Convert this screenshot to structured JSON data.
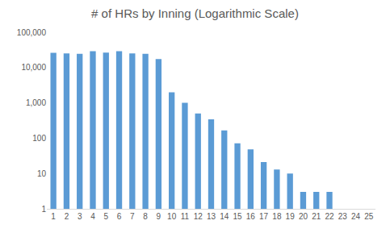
{
  "chart_data": {
    "type": "bar",
    "title": "# of HRs by Inning (Logarithmic Scale)",
    "categories": [
      "1",
      "2",
      "3",
      "4",
      "5",
      "6",
      "7",
      "8",
      "9",
      "10",
      "11",
      "12",
      "13",
      "14",
      "15",
      "16",
      "17",
      "18",
      "19",
      "20",
      "21",
      "22",
      "23",
      "24",
      "25"
    ],
    "values": [
      26000,
      25000,
      24500,
      29000,
      26500,
      29000,
      25000,
      24500,
      17500,
      2000,
      1000,
      500,
      340,
      165,
      72,
      48,
      21,
      13,
      10,
      3,
      3,
      3,
      null,
      null,
      null
    ],
    "color": "#5b9bd5",
    "log": "y",
    "ylim": [
      1,
      100000
    ],
    "yticks": [
      1,
      10,
      100,
      {
        "value": 1000,
        "label": "1,000"
      },
      {
        "value": 10000,
        "label": "10,000"
      },
      {
        "value": 100000,
        "label": "100,000"
      }
    ],
    "grid": false
  }
}
